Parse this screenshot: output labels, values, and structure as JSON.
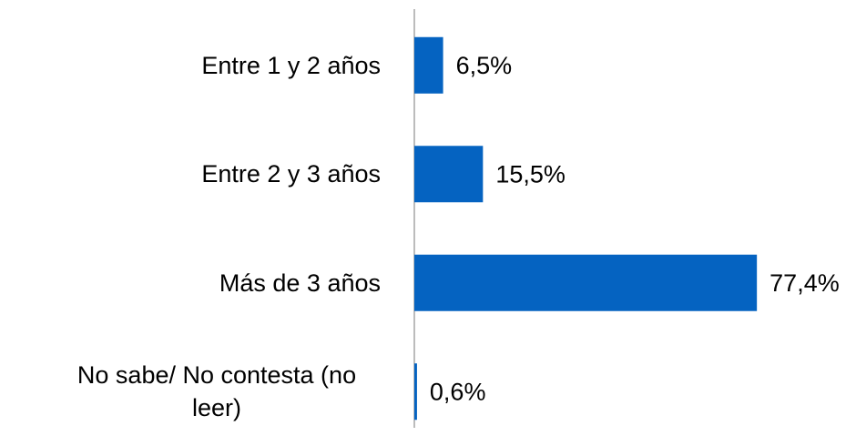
{
  "chart_data": {
    "type": "bar",
    "orientation": "horizontal",
    "categories": [
      "Entre 1 y 2 años",
      "Entre 2 y 3 años",
      "Más de 3 años",
      "No sabe/ No contesta (no leer)"
    ],
    "values": [
      6.5,
      15.5,
      77.4,
      0.6
    ],
    "value_labels": [
      "6,5%",
      "15,5%",
      "77,4%",
      "0,6%"
    ],
    "color": "#0563c1"
  }
}
